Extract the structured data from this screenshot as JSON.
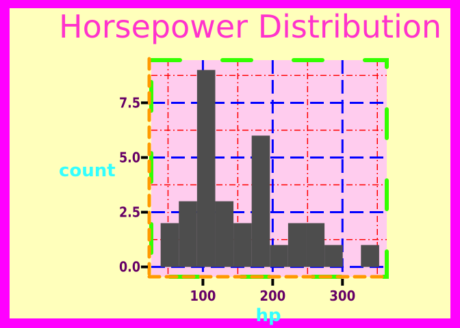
{
  "chart_data": {
    "type": "bar",
    "title": "Horsepower Distribution",
    "xlabel": "hp",
    "ylabel": "count",
    "bin_width": 26.1,
    "bins": [
      {
        "x0": 39.4,
        "x1": 65.5,
        "count": 2
      },
      {
        "x0": 65.5,
        "x1": 91.6,
        "count": 3
      },
      {
        "x0": 91.6,
        "x1": 117.7,
        "count": 9
      },
      {
        "x0": 117.7,
        "x1": 143.8,
        "count": 3
      },
      {
        "x0": 143.8,
        "x1": 169.9,
        "count": 2
      },
      {
        "x0": 169.9,
        "x1": 196.0,
        "count": 6
      },
      {
        "x0": 196.0,
        "x1": 222.1,
        "count": 1
      },
      {
        "x0": 222.1,
        "x1": 248.2,
        "count": 2
      },
      {
        "x0": 248.2,
        "x1": 274.3,
        "count": 2
      },
      {
        "x0": 274.3,
        "x1": 300.4,
        "count": 1
      },
      {
        "x0": 300.4,
        "x1": 326.5,
        "count": 0
      },
      {
        "x0": 326.5,
        "x1": 352.6,
        "count": 1
      }
    ],
    "xlim": [
      26.0,
      363.5
    ],
    "ylim": [
      -0.45,
      9.45
    ],
    "x_ticks": [
      100,
      200,
      300
    ],
    "x_tick_labels": [
      "100",
      "200",
      "300"
    ],
    "y_ticks": [
      0,
      2.5,
      5,
      7.5
    ],
    "y_tick_labels": [
      "0.0",
      "2.5",
      "5.0",
      "7.5"
    ],
    "x_minor": [
      50,
      150,
      250,
      350
    ],
    "y_minor": [
      1.25,
      3.75,
      6.25,
      8.75
    ],
    "grid": true,
    "legend": "none",
    "colors": {
      "page_background": "#ff00ff",
      "panel_fill": "#ffffbb",
      "plot_background": "#ffccee",
      "bar_fill": "#4d4d4d",
      "major_grid": "#0000ff",
      "minor_grid": "#ff0000",
      "panel_border": "#33ff00",
      "axis_line": "#ff9900",
      "tick_color": "#000000",
      "tick_label": "#660066",
      "axis_title": "#33ffff",
      "title": "#ff33cc"
    }
  }
}
